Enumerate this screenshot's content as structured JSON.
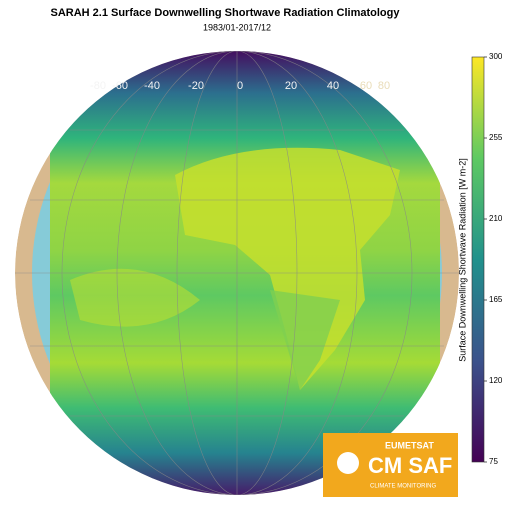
{
  "title": "SARAH 2.1 Surface Downwelling Shortwave Radiation Climatology",
  "subtitle": "1983/01-2017/12",
  "lon_labels": [
    -80,
    -60,
    -40,
    -20,
    0,
    20,
    40,
    60,
    80
  ],
  "colorbar": {
    "label": "Surface Downwelling Shortwave Radiation [W m-2]",
    "lim": [
      75,
      300
    ],
    "ticks": [
      75,
      120,
      165,
      210,
      255,
      300
    ]
  },
  "logo": {
    "org": "EUMETSAT",
    "name": "CM SAF",
    "tagline": "CLIMATE MONITORING"
  }
}
